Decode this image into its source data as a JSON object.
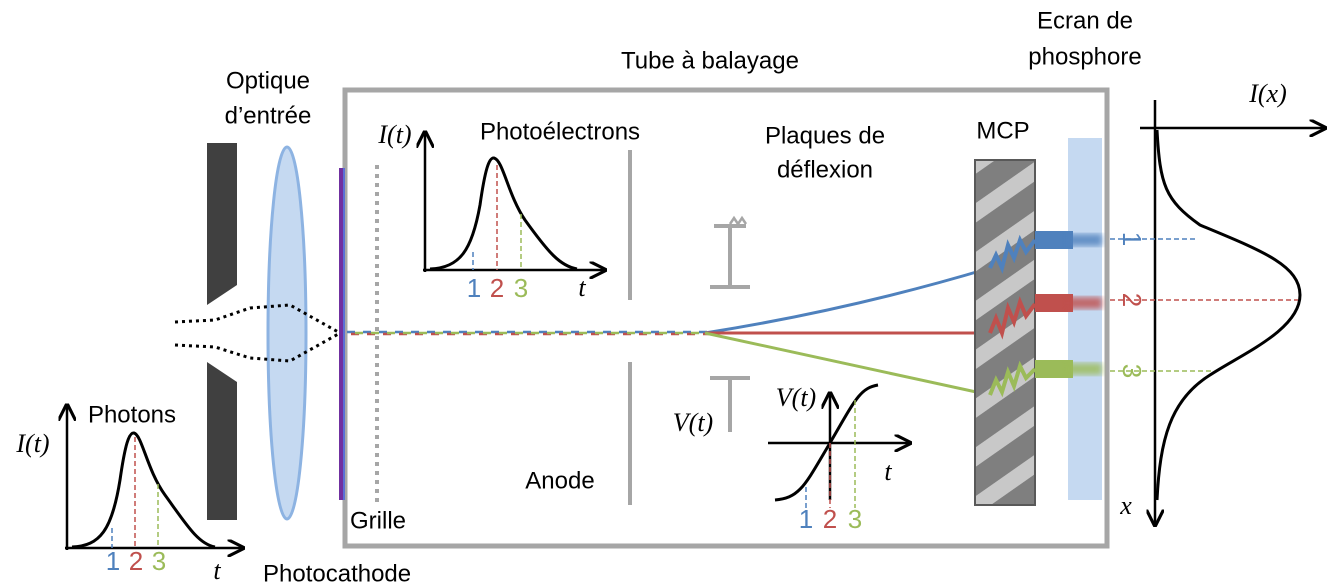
{
  "labels": {
    "input_optics": [
      "Optique",
      "d’entrée"
    ],
    "tube": "Tube à balayage",
    "screen": [
      "Ecran de",
      "phosphore"
    ],
    "photoelectrons": "Photoélectrons",
    "plates": [
      "Plaques de",
      "déflexion"
    ],
    "mcp": "MCP",
    "photons": "Photons",
    "grid": "Grille",
    "anode": "Anode",
    "photocathode": "Photocathode",
    "plate_voltage": "V(t)"
  },
  "plots": {
    "photons": {
      "y_label": "I(t)",
      "x_label": "t",
      "markers": [
        "1",
        "2",
        "3"
      ]
    },
    "photoelectrons": {
      "y_label": "I(t)",
      "x_label": "t",
      "markers": [
        "1",
        "2",
        "3"
      ]
    },
    "sweep": {
      "y_label": "V(t)",
      "x_label": "t",
      "markers": [
        "1",
        "2",
        "3"
      ]
    },
    "screen_profile": {
      "y_label": "I(x)",
      "x_label": "x",
      "markers": [
        "1",
        "2",
        "3"
      ]
    }
  }
}
